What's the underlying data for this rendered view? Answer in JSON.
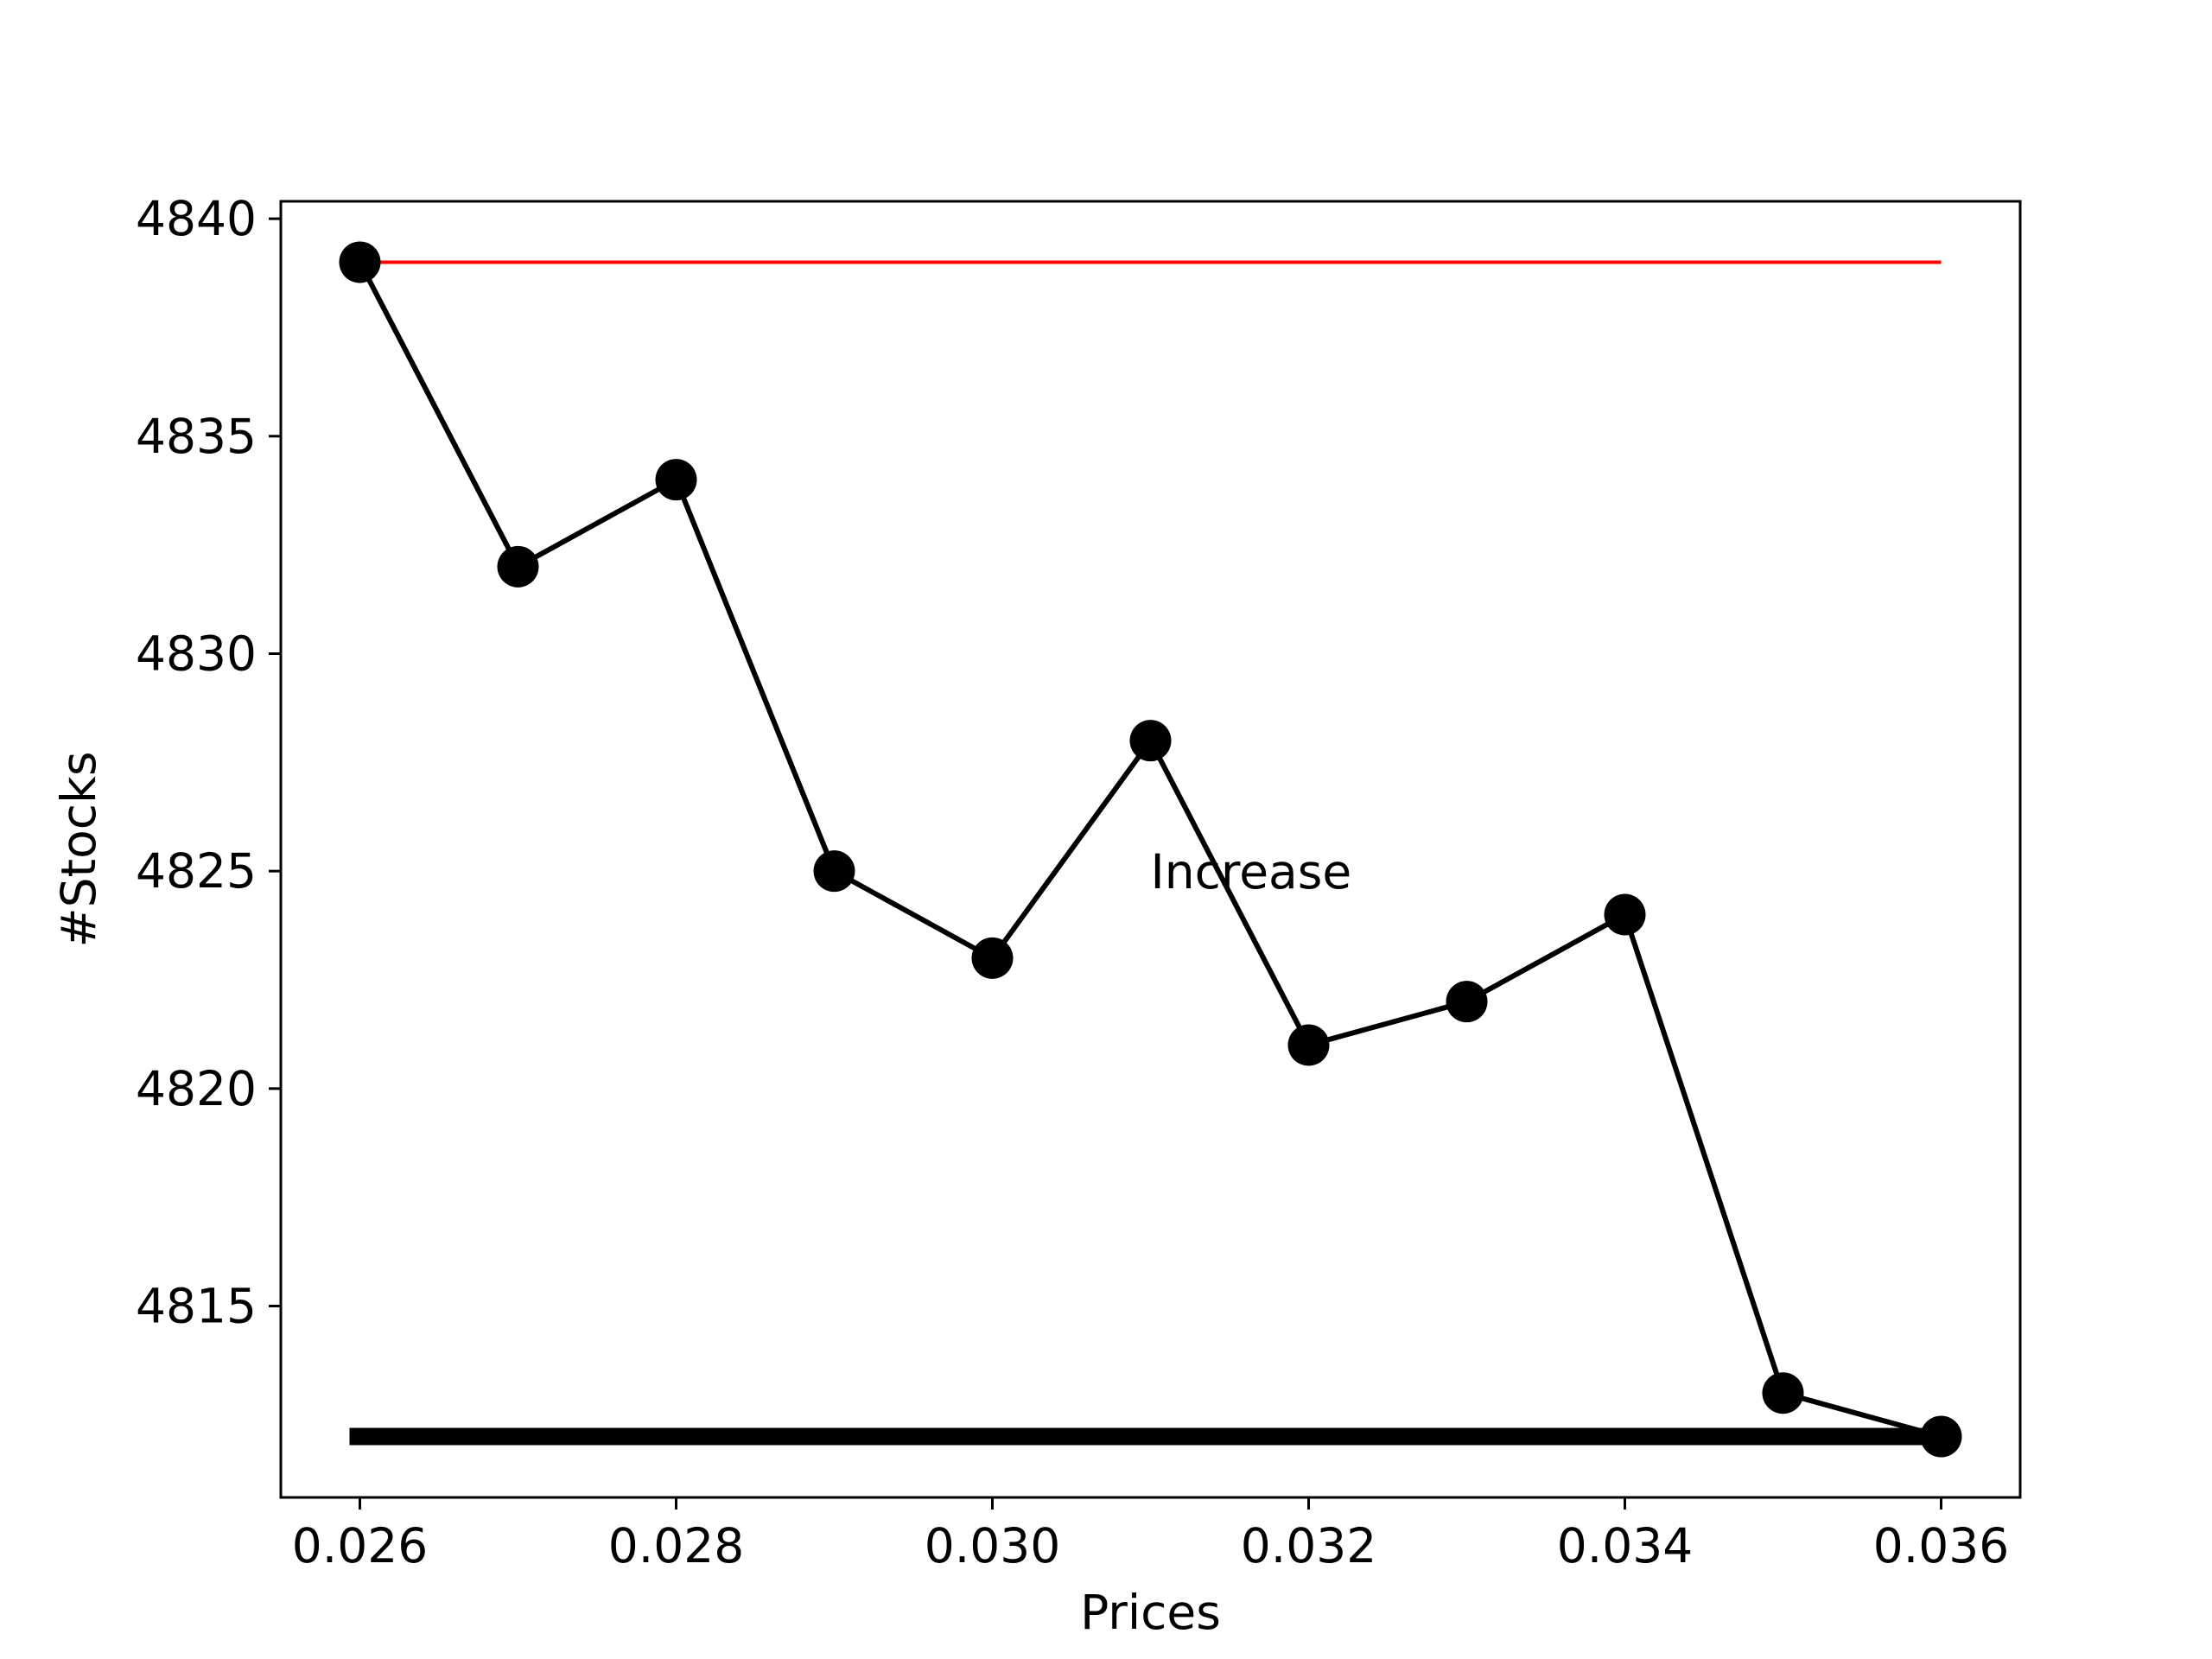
{
  "chart_data": {
    "type": "line",
    "title": "",
    "xlabel": "Prices",
    "ylabel": "#Stocks",
    "xlim": [
      0.0255,
      0.0365
    ],
    "ylim": [
      4810.6,
      4840.4
    ],
    "xticks": [
      0.026,
      0.028,
      0.03,
      0.032,
      0.034,
      0.036
    ],
    "xtick_labels": [
      "0.026",
      "0.028",
      "0.030",
      "0.032",
      "0.034",
      "0.036"
    ],
    "yticks": [
      4815,
      4820,
      4825,
      4830,
      4835,
      4840
    ],
    "ytick_labels": [
      "4815",
      "4820",
      "4825",
      "4830",
      "4835",
      "4840"
    ],
    "grid": false,
    "series": [
      {
        "x": [
          0.026,
          0.027,
          0.028,
          0.029,
          0.03,
          0.031,
          0.032,
          0.033,
          0.034,
          0.035,
          0.036
        ],
        "values": [
          4839,
          4832,
          4834,
          4825,
          4823,
          4828,
          4821,
          4822,
          4824,
          4813,
          4812
        ],
        "color": "#000000",
        "marker": "circle"
      }
    ],
    "reference_lines": [
      {
        "y": 4839,
        "x": [
          0.026,
          0.036
        ],
        "color": "#ff0000",
        "style": "thin"
      },
      {
        "y": 4812,
        "x": [
          0.026,
          0.036
        ],
        "color": "#000000",
        "style": "thick"
      }
    ],
    "annotations": [
      {
        "text": "Increase",
        "x": 0.031,
        "y": 4825
      }
    ]
  }
}
